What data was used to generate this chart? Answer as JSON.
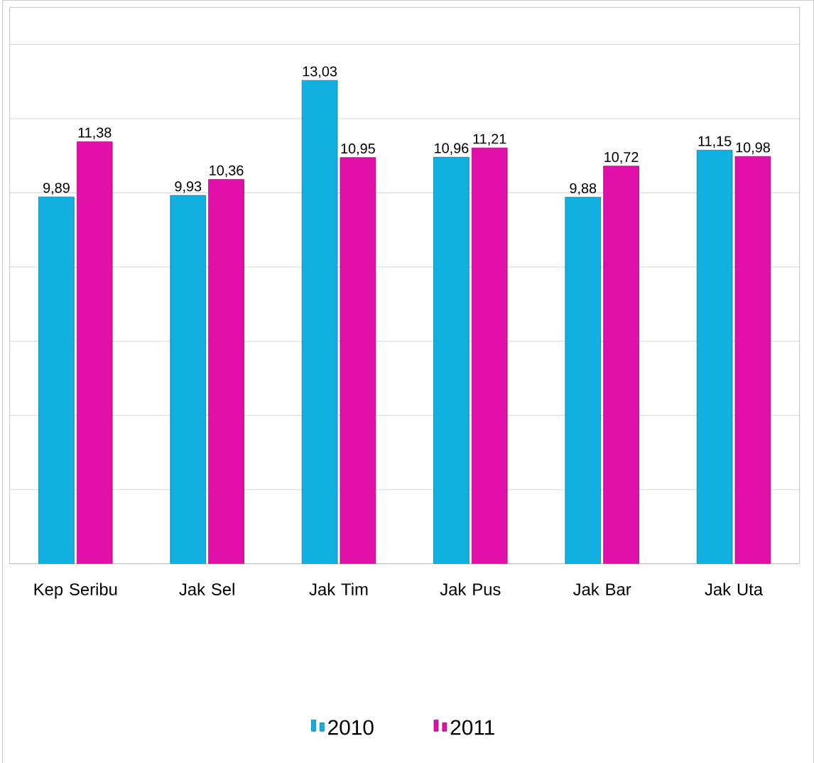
{
  "chart_data": {
    "type": "bar",
    "categories": [
      "Kep Seribu",
      "Jak Sel",
      "Jak Tim",
      "Jak Pus",
      "Jak Bar",
      "Jak Uta"
    ],
    "series": [
      {
        "name": "2010",
        "color": "#12b0e0",
        "values": [
          9.89,
          9.93,
          13.03,
          10.96,
          9.88,
          11.15
        ],
        "value_labels": [
          "9,89",
          "9,93",
          "13,03",
          "10,96",
          "9,88",
          "11,15"
        ]
      },
      {
        "name": "2011",
        "color": "#e010a8",
        "values": [
          11.38,
          10.36,
          10.95,
          11.21,
          10.72,
          10.98
        ],
        "value_labels": [
          "11,38",
          "10,36",
          "10,95",
          "11,21",
          "10,72",
          "10,98"
        ]
      }
    ],
    "ylim": [
      0,
      15
    ],
    "yticks": [
      {
        "value": 0,
        "label": null
      },
      {
        "value": 2,
        "label": null
      },
      {
        "value": 4,
        "label": null
      },
      {
        "value": 6,
        "label": null
      },
      {
        "value": 8,
        "label": null
      },
      {
        "value": 10,
        "label": null
      },
      {
        "value": 12,
        "label": null
      },
      {
        "value": 14,
        "label": null
      }
    ],
    "grid": "y",
    "legend": "bottom"
  }
}
